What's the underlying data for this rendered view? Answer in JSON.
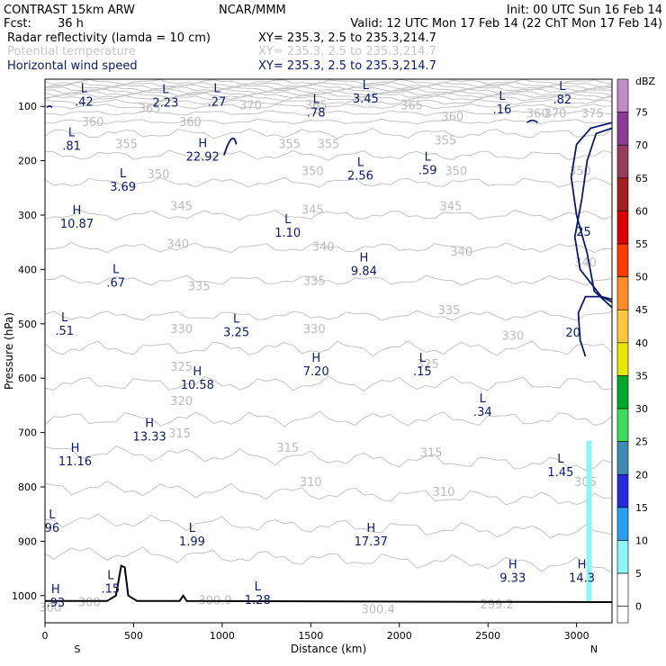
{
  "header": {
    "model": "CONTRAST 15km ARW",
    "center": "NCAR/MMM",
    "init": "Init: 00 UTC Sun 16 Feb 14",
    "fcst_label": "Fcst:",
    "fcst_value": "36 h",
    "valid": "Valid: 12 UTC Mon 17 Feb 14 (22 ChT Mon 17 Feb 14)",
    "fields": [
      {
        "name": "Radar reflectivity (lamda = 10 cm)",
        "xy": "XY= 235.3,  2.5 to 235.3,214.7",
        "color": "#000000"
      },
      {
        "name": "Potential temperature",
        "xy": "XY= 235.3,  2.5 to 235.3,214.7",
        "color": "#c8c8c8"
      },
      {
        "name": "Horizontal wind speed",
        "xy": "XY= 235.3,  2.5 to 235.3,214.7",
        "color": "#0a1a6e"
      }
    ]
  },
  "chart_data": {
    "type": "cross-section",
    "xlabel": "Distance (km)",
    "ylabel": "Pressure (hPa)",
    "xlim": [
      0,
      3200
    ],
    "ylim": [
      1050,
      50
    ],
    "x_ticks": [
      0,
      500,
      1000,
      1500,
      2000,
      2500,
      3000
    ],
    "y_ticks": [
      100,
      200,
      300,
      400,
      500,
      600,
      700,
      800,
      900,
      1000
    ],
    "x_end_labels": {
      "left": "S",
      "right": "N"
    },
    "colorbar": {
      "unit": "dBZ",
      "levels": [
        {
          "label": "75",
          "color": "#c08cc8"
        },
        {
          "label": "70",
          "color": "#8c3c96"
        },
        {
          "label": "65",
          "color": "#963c5a"
        },
        {
          "label": "60",
          "color": "#a01e1e"
        },
        {
          "label": "55",
          "color": "#dc0000"
        },
        {
          "label": "50",
          "color": "#ff3c00"
        },
        {
          "label": "45",
          "color": "#ff8c28"
        },
        {
          "label": "40",
          "color": "#ffc83c"
        },
        {
          "label": "35",
          "color": "#e6e600"
        },
        {
          "label": "30",
          "color": "#00aa28"
        },
        {
          "label": "25",
          "color": "#3cdc5a"
        },
        {
          "label": "20",
          "color": "#3c8cb4"
        },
        {
          "label": "15",
          "color": "#2828dc"
        },
        {
          "label": "10",
          "color": "#28a0f0"
        },
        {
          "label": "5",
          "color": "#8cf5f5"
        },
        {
          "label": "0",
          "color": "#ffffff"
        }
      ]
    },
    "theta_labels": [
      {
        "text": "360",
        "x": 270,
        "p": 128
      },
      {
        "text": "360",
        "x": 820,
        "p": 128
      },
      {
        "text": "360",
        "x": 2300,
        "p": 118
      },
      {
        "text": "360",
        "x": 2780,
        "p": 112
      },
      {
        "text": "365",
        "x": 590,
        "p": 103
      },
      {
        "text": "365",
        "x": 1530,
        "p": 97
      },
      {
        "text": "365",
        "x": 2070,
        "p": 97
      },
      {
        "text": "370",
        "x": 1160,
        "p": 97
      },
      {
        "text": "370",
        "x": 2880,
        "p": 112
      },
      {
        "text": "375",
        "x": 3090,
        "p": 112
      },
      {
        "text": "355",
        "x": 460,
        "p": 168
      },
      {
        "text": "355",
        "x": 1380,
        "p": 168
      },
      {
        "text": "355",
        "x": 1600,
        "p": 168
      },
      {
        "text": "355",
        "x": 2260,
        "p": 162
      },
      {
        "text": "350",
        "x": 640,
        "p": 224
      },
      {
        "text": "350",
        "x": 1510,
        "p": 218
      },
      {
        "text": "350",
        "x": 2320,
        "p": 218
      },
      {
        "text": "350",
        "x": 3020,
        "p": 218
      },
      {
        "text": "345",
        "x": 770,
        "p": 283
      },
      {
        "text": "345",
        "x": 1510,
        "p": 289
      },
      {
        "text": "345",
        "x": 2290,
        "p": 283
      },
      {
        "text": "340",
        "x": 750,
        "p": 352
      },
      {
        "text": "340",
        "x": 1570,
        "p": 357
      },
      {
        "text": "340",
        "x": 2350,
        "p": 366
      },
      {
        "text": "340",
        "x": 3050,
        "p": 386
      },
      {
        "text": "335",
        "x": 870,
        "p": 430
      },
      {
        "text": "335",
        "x": 1520,
        "p": 420
      },
      {
        "text": "335",
        "x": 2280,
        "p": 474
      },
      {
        "text": "330",
        "x": 770,
        "p": 509
      },
      {
        "text": "330",
        "x": 1520,
        "p": 509
      },
      {
        "text": "330",
        "x": 2640,
        "p": 521
      },
      {
        "text": "325",
        "x": 770,
        "p": 578
      },
      {
        "text": "325",
        "x": 2160,
        "p": 573
      },
      {
        "text": "320",
        "x": 770,
        "p": 641
      },
      {
        "text": "315",
        "x": 760,
        "p": 701
      },
      {
        "text": "315",
        "x": 1370,
        "p": 727
      },
      {
        "text": "315",
        "x": 2180,
        "p": 736
      },
      {
        "text": "310",
        "x": 1500,
        "p": 790
      },
      {
        "text": "310",
        "x": 2250,
        "p": 808
      },
      {
        "text": "305",
        "x": 3050,
        "p": 790
      },
      {
        "text": "300.9",
        "x": 960,
        "p": 1008
      },
      {
        "text": "300.4",
        "x": 1880,
        "p": 1024
      },
      {
        "text": "299.2",
        "x": 2550,
        "p": 1015
      },
      {
        "text": "300",
        "x": 250,
        "p": 1011
      },
      {
        "text": "300",
        "x": 30,
        "p": 1021
      }
    ],
    "wind_speed_extrema": [
      {
        "type": "L",
        "value": ".42",
        "x": 220,
        "p": 84
      },
      {
        "type": "L",
        "value": "2.23",
        "x": 680,
        "p": 86
      },
      {
        "type": "L",
        "value": ".27",
        "x": 970,
        "p": 84
      },
      {
        "type": "L",
        "value": ".78",
        "x": 1530,
        "p": 104
      },
      {
        "type": "L",
        "value": "3.45",
        "x": 1810,
        "p": 78
      },
      {
        "type": "L",
        "value": ".16",
        "x": 2580,
        "p": 98
      },
      {
        "type": "L",
        "value": ".82",
        "x": 2920,
        "p": 80
      },
      {
        "type": "L",
        "value": ".81",
        "x": 150,
        "p": 165
      },
      {
        "type": "H",
        "value": "22.92",
        "x": 890,
        "p": 185
      },
      {
        "type": "L",
        "value": "2.56",
        "x": 1780,
        "p": 220
      },
      {
        "type": "L",
        "value": ".59",
        "x": 2160,
        "p": 210
      },
      {
        "type": "L",
        "value": "3.69",
        "x": 440,
        "p": 240
      },
      {
        "type": "H",
        "value": "10.87",
        "x": 180,
        "p": 308
      },
      {
        "type": "L",
        "value": "1.10",
        "x": 1370,
        "p": 325
      },
      {
        "type": "H",
        "value": "9.84",
        "x": 1800,
        "p": 395
      },
      {
        "type": "L",
        "value": ".67",
        "x": 400,
        "p": 417
      },
      {
        "type": "L",
        "value": ".51",
        "x": 110,
        "p": 505
      },
      {
        "type": "L",
        "value": "3.25",
        "x": 1080,
        "p": 508
      },
      {
        "type": "H",
        "value": "7.20",
        "x": 1530,
        "p": 580
      },
      {
        "type": "L",
        "value": ".15",
        "x": 2130,
        "p": 580
      },
      {
        "type": "H",
        "value": "10.58",
        "x": 860,
        "p": 605
      },
      {
        "type": "L",
        "value": ".34",
        "x": 2470,
        "p": 654
      },
      {
        "type": "H",
        "value": "13.33",
        "x": 590,
        "p": 700
      },
      {
        "type": "H",
        "value": "11.16",
        "x": 170,
        "p": 745
      },
      {
        "type": "L",
        "value": "1.45",
        "x": 2910,
        "p": 765
      },
      {
        "type": "L",
        "value": "1.99",
        "x": 830,
        "p": 893
      },
      {
        "type": "H",
        "value": "17.37",
        "x": 1840,
        "p": 893
      },
      {
        "type": "H",
        "value": "9.33",
        "x": 2640,
        "p": 960
      },
      {
        "type": "H",
        "value": "14.3",
        "x": 3030,
        "p": 960
      },
      {
        "type": "L",
        "value": ".15",
        "x": 370,
        "p": 980
      },
      {
        "type": "L",
        "value": "1.28",
        "x": 1200,
        "p": 1000
      },
      {
        "type": "H",
        "value": ".93",
        "x": 60,
        "p": 1005
      },
      {
        "type": "L",
        "value": "96",
        "x": 40,
        "p": 868
      }
    ],
    "wind_speed_contour_labels": [
      {
        "text": "25",
        "x": 3040,
        "p": 330
      },
      {
        "text": "20",
        "x": 2980,
        "p": 515
      }
    ]
  }
}
